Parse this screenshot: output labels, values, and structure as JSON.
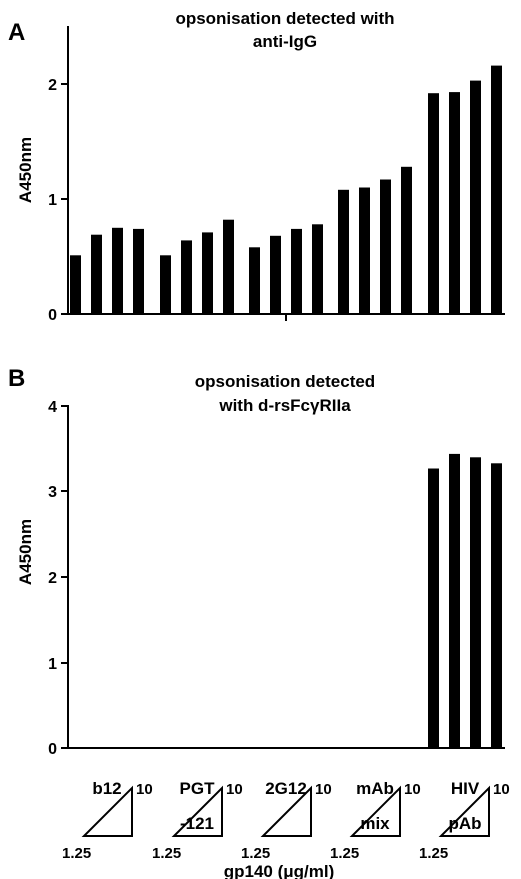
{
  "chart_data": [
    {
      "panel_letter": "A",
      "type": "bar",
      "title_lines": [
        "opsonisation detected with",
        "anti-IgG"
      ],
      "ylabel": "A450nm",
      "ylim": [
        0,
        2.5
      ],
      "yticks": [
        "0",
        "1",
        "2"
      ],
      "grid": false,
      "categories": [
        "b12",
        "PGT -121",
        "2G12",
        "mAb mix",
        "HIV pAb"
      ],
      "series_labels": [],
      "values": [
        [
          0.51,
          0.69,
          0.75,
          0.74
        ],
        [
          0.51,
          0.64,
          0.71,
          0.82
        ],
        [
          0.58,
          0.68,
          0.74,
          0.78
        ],
        [
          1.08,
          1.1,
          1.17,
          1.28
        ],
        [
          1.92,
          1.93,
          2.03,
          2.16
        ]
      ]
    },
    {
      "panel_letter": "B",
      "type": "bar",
      "title_lines": [
        "opsonisation detected",
        "with d-rsFcγRIIa"
      ],
      "ylabel": "A450nm",
      "ylim": [
        0,
        4
      ],
      "yticks": [
        "0",
        "1",
        "2",
        "3",
        "4"
      ],
      "grid": false,
      "categories": [
        "b12",
        "PGT -121",
        "2G12",
        "mAb mix",
        "HIV pAb"
      ],
      "values": [
        [
          0,
          0,
          0,
          0
        ],
        [
          0,
          0,
          0,
          0
        ],
        [
          0,
          0,
          0,
          0
        ],
        [
          0,
          0,
          0,
          0
        ],
        [
          3.26,
          3.43,
          3.39,
          3.32
        ]
      ]
    }
  ],
  "categories": [
    {
      "line1": "b12",
      "line2": ""
    },
    {
      "line1": "PGT",
      "line2": "-121"
    },
    {
      "line1": "2G12",
      "line2": ""
    },
    {
      "line1": "mAb",
      "line2": "mix"
    },
    {
      "line1": "HIV",
      "line2": "pAb"
    }
  ],
  "concentration": {
    "low": "1.25",
    "high": "10",
    "xlabel": "gp140 (μg/ml)"
  }
}
